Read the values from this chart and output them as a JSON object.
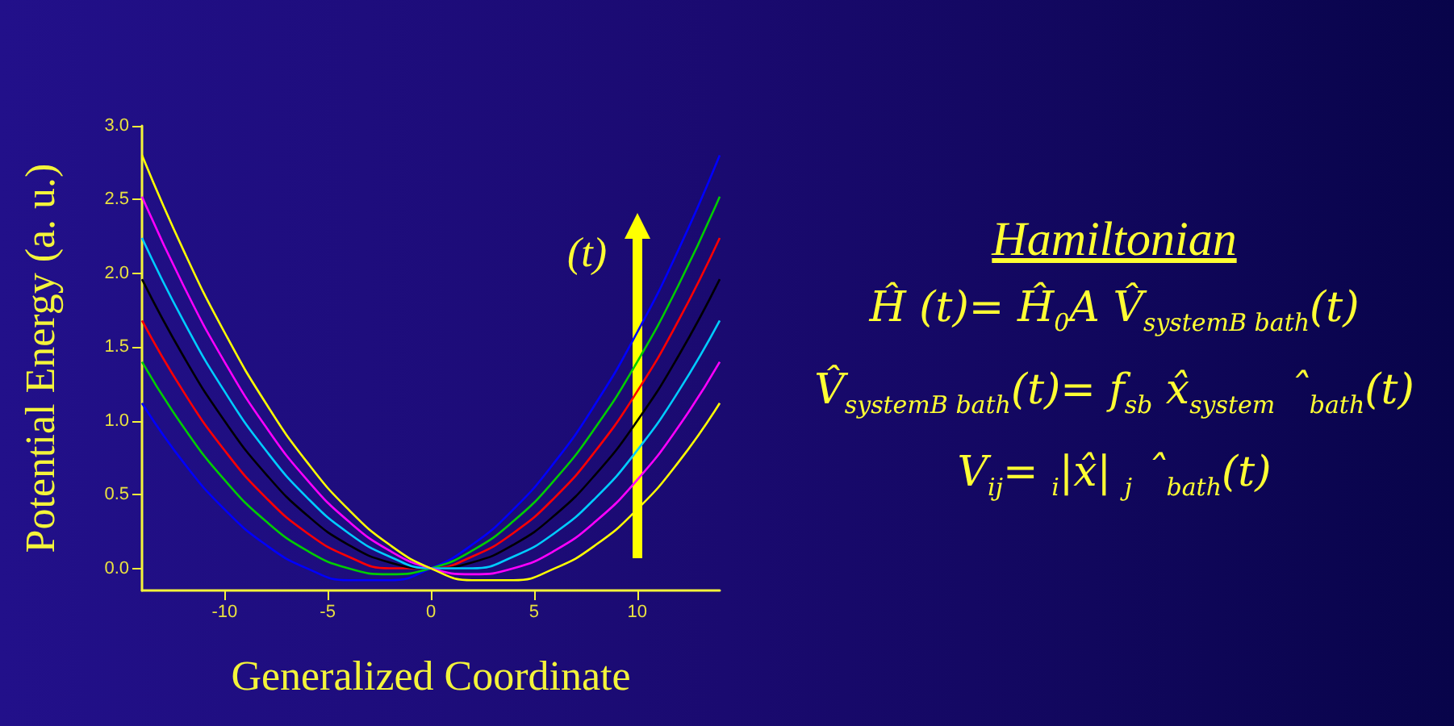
{
  "chart_data": {
    "type": "line",
    "xlabel": "Generalized Coordinate",
    "ylabel": "Potential Energy (a. u.)",
    "x": [
      -14,
      -12,
      -10,
      -8,
      -6,
      -4,
      -2,
      0,
      2,
      4,
      6,
      8,
      10,
      12,
      14
    ],
    "series": [
      {
        "color": "#0000ff",
        "values": [
          1.12,
          0.72,
          0.4,
          0.16,
          0.0,
          -0.08,
          -0.08,
          0,
          0.16,
          0.4,
          0.72,
          1.12,
          1.6,
          2.16,
          2.8
        ]
      },
      {
        "color": "#00cc00",
        "values": [
          1.4,
          0.96,
          0.6,
          0.32,
          0.12,
          0.0,
          -0.04,
          0,
          0.12,
          0.32,
          0.6,
          0.96,
          1.4,
          1.92,
          2.52
        ]
      },
      {
        "color": "#ff0000",
        "values": [
          1.68,
          1.2,
          0.8,
          0.48,
          0.24,
          0.08,
          0.0,
          0,
          0.08,
          0.24,
          0.48,
          0.8,
          1.2,
          1.68,
          2.24
        ]
      },
      {
        "color": "#000000",
        "values": [
          1.96,
          1.44,
          1.0,
          0.64,
          0.36,
          0.16,
          0.04,
          0,
          0.04,
          0.16,
          0.36,
          0.64,
          1.0,
          1.44,
          1.96
        ]
      },
      {
        "color": "#00ccff",
        "values": [
          2.24,
          1.68,
          1.2,
          0.8,
          0.48,
          0.24,
          0.08,
          0,
          0.0,
          0.08,
          0.24,
          0.48,
          0.8,
          1.2,
          1.68
        ]
      },
      {
        "color": "#ff00ff",
        "values": [
          2.52,
          1.92,
          1.4,
          0.96,
          0.6,
          0.32,
          0.12,
          0,
          -0.04,
          0.0,
          0.12,
          0.32,
          0.6,
          0.96,
          1.4
        ]
      },
      {
        "color": "#ffff00",
        "values": [
          2.8,
          2.16,
          1.6,
          1.12,
          0.72,
          0.4,
          0.16,
          0,
          -0.08,
          -0.08,
          0.0,
          0.16,
          0.4,
          0.72,
          1.12
        ]
      }
    ],
    "xlim": [
      -14,
      14
    ],
    "xticks": [
      -10,
      -5,
      0,
      5,
      10
    ],
    "ylim": [
      -0.15,
      3.0
    ],
    "yticks": [
      {
        "value": 0,
        "label": "0.0"
      },
      {
        "value": 0.5,
        "label": "0.5"
      },
      {
        "value": 1,
        "label": "1.0"
      },
      {
        "value": 1.5,
        "label": "1.5"
      },
      {
        "value": 2,
        "label": "2.0"
      },
      {
        "value": 2.5,
        "label": "2.5"
      },
      {
        "value": 3,
        "label": "3.0"
      }
    ],
    "grid": false,
    "annotations": [
      "(t)",
      "Hamiltonian",
      "Ĥ (t)= Ĥ$_{0}$A V̂$_{systemB bath}$(t)",
      "V̂$_{systemB bath}$(t)= f$_{sb}$ x̂$_{system}$  ˆ$_{bath}$(t)",
      "V$_{ij}$=   $_{i}$|x̂|  $_{j}$  ˆ$_{bath}$(t)"
    ]
  }
}
